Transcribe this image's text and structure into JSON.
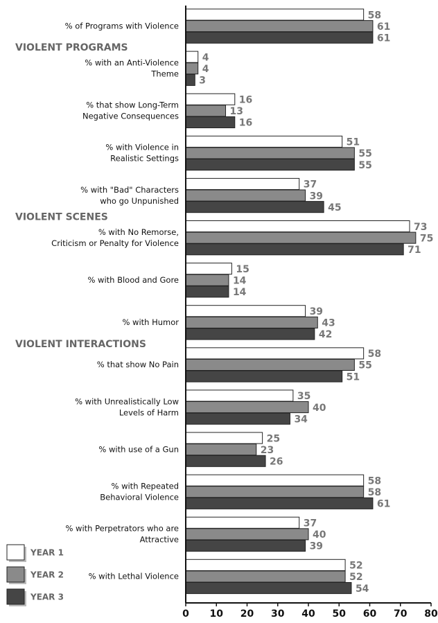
{
  "chart_data": {
    "type": "bar",
    "orientation": "horizontal",
    "categories": [
      [
        "% of Programs with Violence"
      ],
      [
        "% with an Anti-Violence",
        "Theme"
      ],
      [
        "% that show Long-Term",
        "Negative Consequences"
      ],
      [
        "% with Violence in",
        "Realistic Settings"
      ],
      [
        "% with \"Bad\" Characters",
        "who go Unpunished"
      ],
      [
        "% with No Remorse,",
        "Criticism or Penalty for Violence"
      ],
      [
        "% with Blood and Gore"
      ],
      [
        "% with Humor"
      ],
      [
        "% that show No Pain"
      ],
      [
        "% with Unrealistically Low",
        "Levels of  Harm"
      ],
      [
        "% with use of a Gun"
      ],
      [
        "% with Repeated",
        "Behavioral Violence"
      ],
      [
        "% with Perpetrators who are",
        "Attractive"
      ],
      [
        "% with Lethal Violence"
      ]
    ],
    "sections": [
      {
        "title": "VIOLENT PROGRAMS",
        "first": 1
      },
      {
        "title": "VIOLENT SCENES",
        "first": 5
      },
      {
        "title": "VIOLENT INTERACTIONS",
        "first": 8
      }
    ],
    "series": [
      {
        "name": "YEAR 1",
        "color": "#ffffff",
        "values": [
          58,
          4,
          16,
          51,
          37,
          73,
          15,
          39,
          58,
          35,
          25,
          58,
          37,
          52
        ]
      },
      {
        "name": "YEAR 2",
        "color": "#8a8a8a",
        "values": [
          61,
          4,
          13,
          55,
          39,
          75,
          14,
          43,
          55,
          40,
          23,
          58,
          40,
          52
        ]
      },
      {
        "name": "YEAR 3",
        "color": "#454545",
        "values": [
          61,
          3,
          16,
          55,
          45,
          71,
          14,
          42,
          51,
          34,
          26,
          61,
          39,
          54
        ]
      }
    ],
    "xlim": [
      0,
      80
    ],
    "xticks": [
      0,
      10,
      20,
      30,
      40,
      50,
      60,
      70,
      80
    ],
    "legend": "bottom-left"
  }
}
